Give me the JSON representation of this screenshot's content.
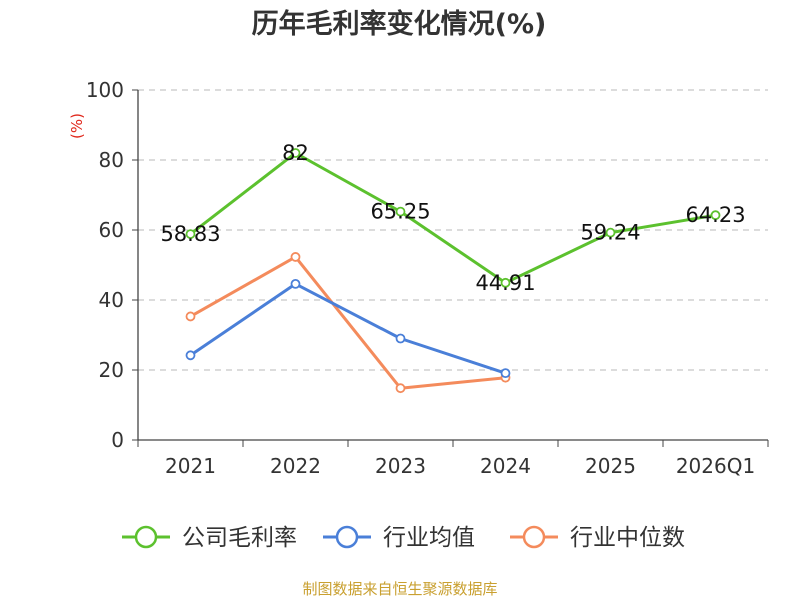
{
  "chart_data": {
    "type": "line",
    "title": "历年毛利率变化情况(%)",
    "ylabel": "(%)",
    "xlabel": "",
    "ylim": [
      0,
      100
    ],
    "yticks": [
      0,
      20,
      40,
      60,
      80,
      100
    ],
    "categories": [
      "2021",
      "2022",
      "2023",
      "2024",
      "2025",
      "2026Q1"
    ],
    "grid": true,
    "legend_position": "bottom",
    "series": [
      {
        "name": "公司毛利率",
        "color": "#5cc12e",
        "values": [
          58.83,
          82,
          65.25,
          44.91,
          59.24,
          64.23
        ],
        "labels": [
          "58.83",
          "82",
          "65.25",
          "44.91",
          "59.24",
          "64.23"
        ]
      },
      {
        "name": "行业均值",
        "color": "#4a7fd8",
        "values": [
          24.2,
          44.6,
          29.0,
          19.1,
          null,
          null
        ]
      },
      {
        "name": "行业中位数",
        "color": "#f48b5c",
        "values": [
          35.3,
          52.3,
          14.8,
          17.8,
          null,
          null
        ]
      }
    ]
  },
  "footer": {
    "source": "制图数据来自恒生聚源数据库"
  }
}
